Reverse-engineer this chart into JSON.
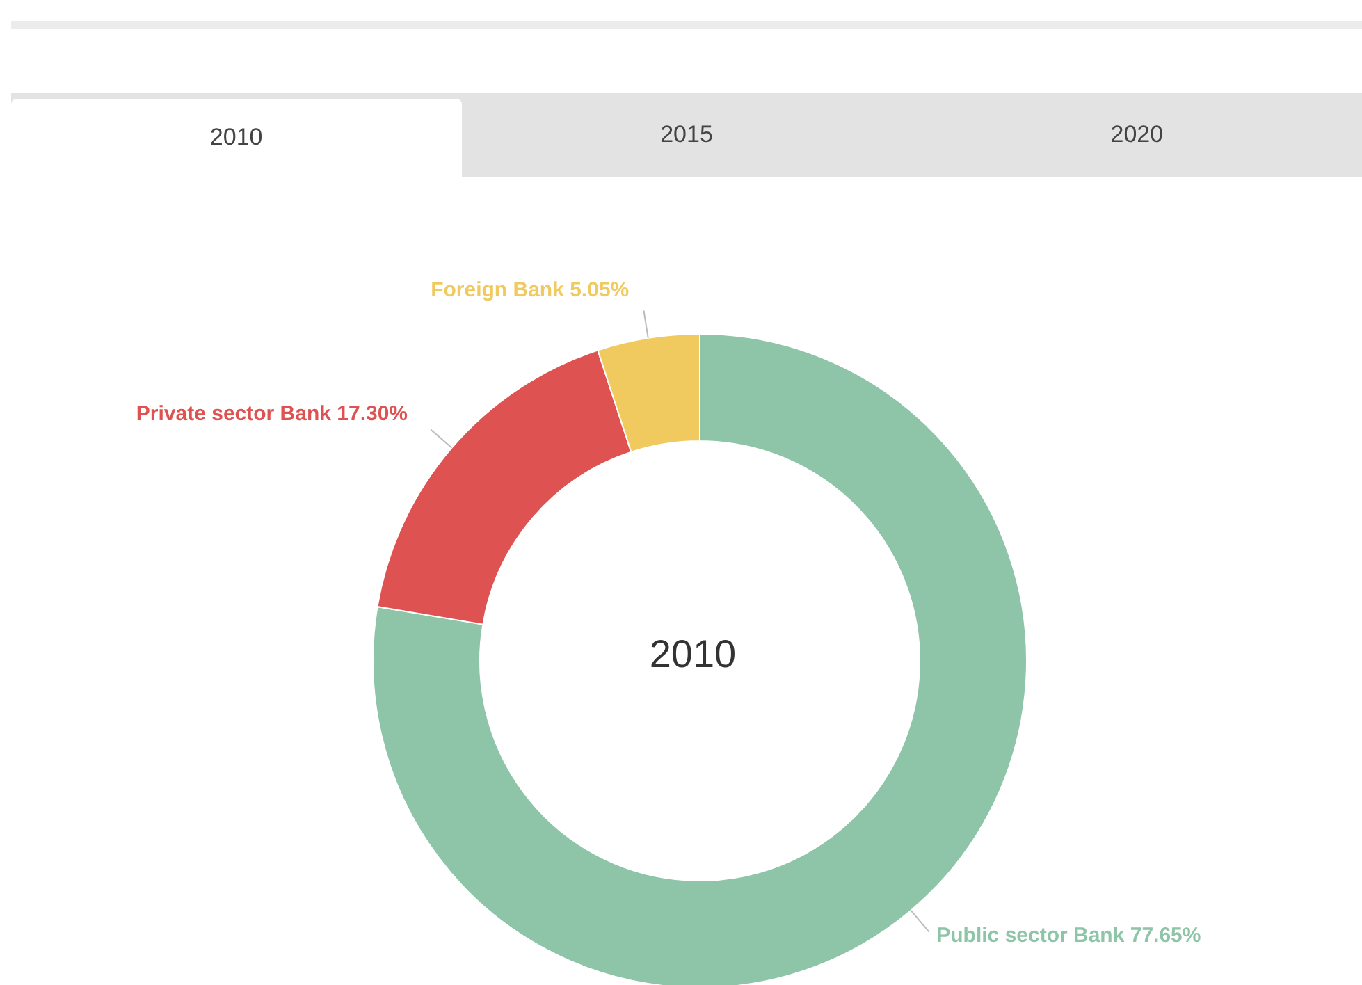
{
  "chart_data": {
    "type": "donut",
    "title": "2010",
    "annotations": [
      "2010",
      "2015",
      "2020"
    ],
    "categories": [
      "Public sector Bank",
      "Private sector Bank",
      "Foreign Bank"
    ],
    "values": [
      77.65,
      17.3,
      5.05
    ],
    "value_labels": [
      "77.65%",
      "17.30%",
      "5.05%"
    ],
    "colors": [
      "#8ec4a7",
      "#df5252",
      "#f0ca5f"
    ],
    "legend": false
  }
}
